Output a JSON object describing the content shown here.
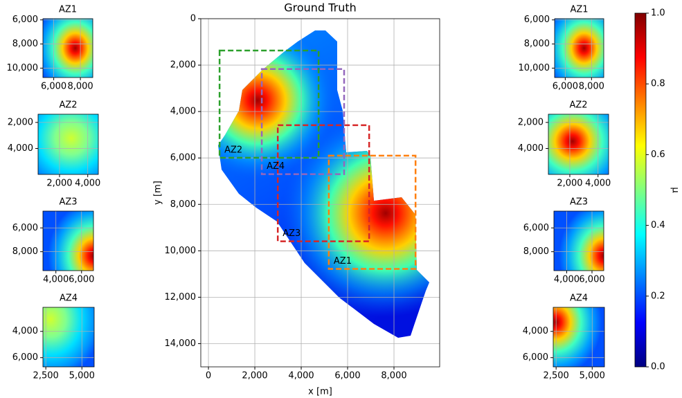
{
  "chart_data": [
    {
      "type": "heatmap",
      "title": "Ground Truth",
      "x_label": "x [m]",
      "y_label": "y [m]",
      "xlim": [
        -330,
        9970
      ],
      "ylim": [
        15000,
        0
      ],
      "grid": true,
      "xticks": [
        0,
        {
          "value": 2000,
          "label": "2,000"
        },
        {
          "value": 4000,
          "label": "4,000"
        },
        {
          "value": 6000,
          "label": "6,000"
        },
        {
          "value": 8000,
          "label": "8,000"
        }
      ],
      "yticks": [
        0,
        {
          "value": 2000,
          "label": "2,000"
        },
        {
          "value": 4000,
          "label": "4,000"
        },
        {
          "value": 6000,
          "label": "6,000"
        },
        {
          "value": 8000,
          "label": "8,000"
        },
        {
          "value": 10000,
          "label": "10,000"
        },
        {
          "value": 12000,
          "label": "12,000"
        },
        {
          "value": 14000,
          "label": "14,000"
        }
      ],
      "boxes": [
        {
          "name": "AZ1",
          "color": "#ff7f0e",
          "x": [
            5190,
            8930
          ],
          "y": [
            10780,
            5900
          ]
        },
        {
          "name": "AZ2",
          "color": "#2ca02c",
          "x": [
            480,
            4750
          ],
          "y": [
            5990,
            1370
          ]
        },
        {
          "name": "AZ3",
          "color": "#d62728",
          "x": [
            2990,
            6930
          ],
          "y": [
            9590,
            4590
          ]
        },
        {
          "name": "AZ4",
          "color": "#9467bd",
          "x": [
            2300,
            5850
          ],
          "y": [
            6700,
            2170
          ]
        }
      ]
    },
    {
      "type": "heatmap",
      "title": "AZ1",
      "xlim": [
        5190,
        8930
      ],
      "ylim": [
        10780,
        5900
      ],
      "grid": true,
      "xticks": [
        {
          "value": 6000,
          "label": "6,000"
        },
        {
          "value": 8000,
          "label": "8,000"
        }
      ],
      "yticks": [
        {
          "value": 6000,
          "label": "6,000"
        },
        {
          "value": 8000,
          "label": "8,000"
        },
        {
          "value": 10000,
          "label": "10,000"
        }
      ]
    },
    {
      "type": "heatmap",
      "title": "AZ2",
      "xlim": [
        480,
        4750
      ],
      "ylim": [
        5990,
        1370
      ],
      "grid": true,
      "xticks": [
        {
          "value": 2000,
          "label": "2,000"
        },
        {
          "value": 4000,
          "label": "4,000"
        }
      ],
      "yticks": [
        {
          "value": 2000,
          "label": "2,000"
        },
        {
          "value": 4000,
          "label": "4,000"
        }
      ]
    },
    {
      "type": "heatmap",
      "title": "AZ3",
      "xlim": [
        2990,
        6930
      ],
      "ylim": [
        9590,
        4590
      ],
      "grid": true,
      "xticks": [
        {
          "value": 4000,
          "label": "4,000"
        },
        {
          "value": 6000,
          "label": "6,000"
        }
      ],
      "yticks": [
        {
          "value": 6000,
          "label": "6,000"
        },
        {
          "value": 8000,
          "label": "8,000"
        }
      ]
    },
    {
      "type": "heatmap",
      "title": "AZ4",
      "xlim": [
        2300,
        5850
      ],
      "ylim": [
        6700,
        2170
      ],
      "grid": true,
      "xticks": [
        {
          "value": 2500,
          "label": "2,500"
        },
        {
          "value": 5000,
          "label": "5,000"
        }
      ],
      "yticks": [
        {
          "value": 4000,
          "label": "4,000"
        },
        {
          "value": 6000,
          "label": "6,000"
        }
      ]
    },
    {
      "type": "heatmap",
      "title": "AZ1",
      "xlim": [
        5190,
        8930
      ],
      "ylim": [
        10780,
        5900
      ],
      "grid": true,
      "xticks": [
        {
          "value": 6000,
          "label": "6,000"
        },
        {
          "value": 8000,
          "label": "8,000"
        }
      ],
      "yticks": [
        {
          "value": 6000,
          "label": "6,000"
        },
        {
          "value": 8000,
          "label": "8,000"
        },
        {
          "value": 10000,
          "label": "10,000"
        }
      ]
    },
    {
      "type": "heatmap",
      "title": "AZ2",
      "xlim": [
        480,
        4750
      ],
      "ylim": [
        5990,
        1370
      ],
      "grid": true,
      "xticks": [
        {
          "value": 2000,
          "label": "2,000"
        },
        {
          "value": 4000,
          "label": "4,000"
        }
      ],
      "yticks": [
        {
          "value": 2000,
          "label": "2,000"
        },
        {
          "value": 4000,
          "label": "4,000"
        }
      ]
    },
    {
      "type": "heatmap",
      "title": "AZ3",
      "xlim": [
        2990,
        6930
      ],
      "ylim": [
        9590,
        4590
      ],
      "grid": true,
      "xticks": [
        {
          "value": 4000,
          "label": "4,000"
        },
        {
          "value": 6000,
          "label": "6,000"
        }
      ],
      "yticks": [
        {
          "value": 6000,
          "label": "6,000"
        },
        {
          "value": 8000,
          "label": "8,000"
        }
      ]
    },
    {
      "type": "heatmap",
      "title": "AZ4",
      "xlim": [
        2300,
        5850
      ],
      "ylim": [
        6700,
        2170
      ],
      "grid": true,
      "xticks": [
        {
          "value": 2500,
          "label": "2,500"
        },
        {
          "value": 5000,
          "label": "5,000"
        }
      ],
      "yticks": [
        {
          "value": 4000,
          "label": "4,000"
        },
        {
          "value": 6000,
          "label": "6,000"
        }
      ]
    },
    {
      "type": "colorbar",
      "label": "μ",
      "ylim": [
        0,
        1
      ],
      "yticks": [
        {
          "value": 0,
          "label": "0.0"
        },
        {
          "value": 0.2,
          "label": "0.2"
        },
        {
          "value": 0.4,
          "label": "0.4"
        },
        {
          "value": 0.6,
          "label": "0.6"
        },
        {
          "value": 0.8,
          "label": "0.8"
        },
        {
          "value": 1,
          "label": "1.0"
        }
      ]
    }
  ]
}
